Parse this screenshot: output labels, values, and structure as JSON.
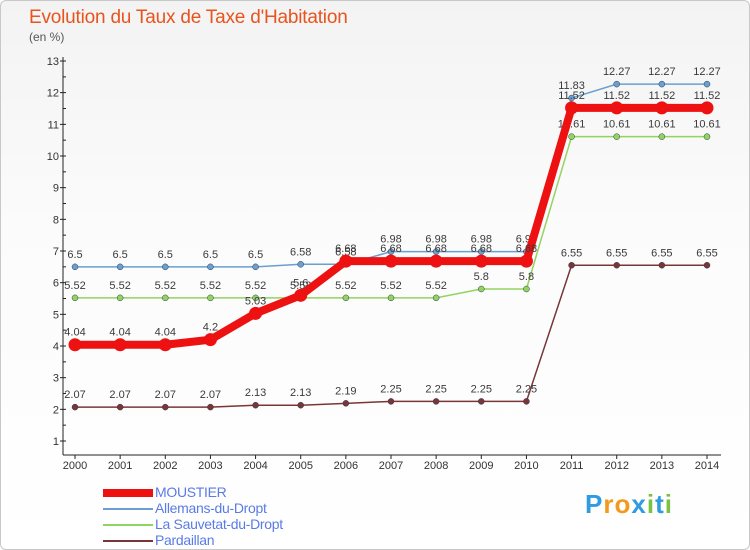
{
  "header": {
    "title": "Evolution du Taux de Taxe d'Habitation",
    "subtitle": "(en %)"
  },
  "logo": {
    "text": "Proxiti",
    "letters": [
      "P",
      "r",
      "o",
      "x",
      "i",
      "t",
      "i"
    ],
    "colors": [
      "#2f9be0",
      "#f29a1c",
      "#f29a1c",
      "#2f9be0",
      "#7cc242",
      "#2f9be0",
      "#7cc242"
    ]
  },
  "chart_data": {
    "type": "line",
    "title": "Evolution du Taux de Taxe d'Habitation",
    "subtitle": "(en %)",
    "x": [
      "2000",
      "2001",
      "2002",
      "2003",
      "2004",
      "2005",
      "2006",
      "2007",
      "2008",
      "2009",
      "2010",
      "2011",
      "2012",
      "2013",
      "2014"
    ],
    "yticks": [
      "1",
      "2",
      "3",
      "4",
      "5",
      "6",
      "7",
      "8",
      "9",
      "10",
      "11",
      "12",
      "13"
    ],
    "ylim": [
      1,
      13
    ],
    "grid": false,
    "legend_position": "bottom-left",
    "series": [
      {
        "name": "Allemans-du-Dropt",
        "color": "#6a9fd0",
        "values": [
          6.5,
          6.5,
          6.5,
          6.5,
          6.5,
          6.58,
          6.58,
          6.98,
          6.98,
          6.98,
          6.98,
          11.83,
          12.27,
          12.27,
          12.27
        ],
        "labels": [
          "6.5",
          "6.5",
          "6.5",
          "6.5",
          "6.5",
          "6.58",
          "6.58",
          "6.98",
          "6.98",
          "6.98",
          "6.98",
          "11.83",
          "12.27",
          "12.27",
          "12.27"
        ]
      },
      {
        "name": "La Sauvetat-du-Dropt",
        "color": "#93d35f",
        "values": [
          5.52,
          5.52,
          5.52,
          5.52,
          5.52,
          5.52,
          5.52,
          5.52,
          5.52,
          5.8,
          5.8,
          10.61,
          10.61,
          10.61,
          10.61
        ],
        "labels": [
          "5.52",
          "5.52",
          "5.52",
          "5.52",
          "5.52",
          "5.52",
          "5.52",
          "5.52",
          "5.52",
          "5.8",
          "5.8",
          "10.61",
          "10.61",
          "10.61",
          "10.61"
        ]
      },
      {
        "name": "Pardaillan",
        "color": "#7a3636",
        "values": [
          2.07,
          2.07,
          2.07,
          2.07,
          2.13,
          2.13,
          2.19,
          2.25,
          2.25,
          2.25,
          2.25,
          6.55,
          6.55,
          6.55,
          6.55
        ],
        "labels": [
          "2.07",
          "2.07",
          "2.07",
          "2.07",
          "2.13",
          "2.13",
          "2.19",
          "2.25",
          "2.25",
          "2.25",
          "2.25",
          "6.55",
          "6.55",
          "6.55",
          "6.55"
        ]
      },
      {
        "name": "MOUSTIER",
        "color": "#ee1111",
        "values": [
          4.04,
          4.04,
          4.04,
          4.2,
          5.03,
          5.6,
          6.68,
          6.68,
          6.68,
          6.68,
          6.68,
          11.52,
          11.52,
          11.52,
          11.52
        ],
        "labels": [
          "4.04",
          "4.04",
          "4.04",
          "4.2",
          "5.03",
          "5.6",
          "6.68",
          "6.68",
          "6.68",
          "6.68",
          "6.68",
          "11.52",
          "11.52",
          "11.52",
          "11.52"
        ]
      }
    ],
    "legend_order": [
      3,
      0,
      1,
      2
    ]
  }
}
